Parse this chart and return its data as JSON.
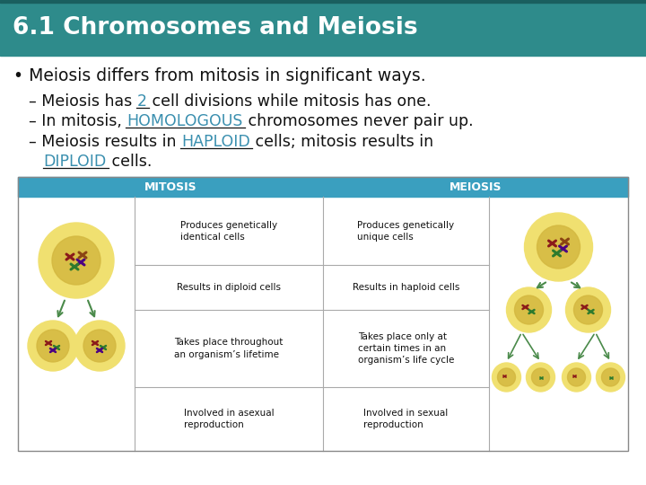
{
  "title": "6.1 Chromosomes and Meiosis",
  "title_bg_color": "#2e8b8b",
  "title_text_color": "#ffffff",
  "title_fontsize": 19,
  "slide_bg_color": "#ffffff",
  "bullet_text": "Meiosis differs from mitosis in significant ways.",
  "bullet_fontsize": 13.5,
  "sub_bullets": [
    {
      "prefix": "– Meiosis has ",
      "blank": "2",
      "suffix": " cell divisions while mitosis has one.",
      "blank_color": "#3a8faf"
    },
    {
      "prefix": "– In mitosis, ",
      "blank": "HOMOLOGOUS",
      "suffix": " chromosomes never pair up.",
      "blank_color": "#3a8faf"
    },
    {
      "prefix": "– Meiosis results in ",
      "blank": "HAPLOID",
      "suffix": " cells; mitosis results in",
      "blank_color": "#3a8faf"
    },
    {
      "prefix": "   ",
      "blank": "DIPLOID",
      "suffix": " cells.",
      "blank_color": "#3a8faf"
    }
  ],
  "sub_bullet_fontsize": 12.5,
  "table_header_bg": "#3a9fbf",
  "table_header_text": "#ffffff",
  "table_border_color": "#aaaaaa",
  "mitosis_header": "MITOSIS",
  "meiosis_header": "MEIOSIS",
  "mitosis_rows": [
    "Produces genetically\nidentical cells",
    "Results in diploid cells",
    "Takes place throughout\nan organism’s lifetime",
    "Involved in asexual\nreproduction"
  ],
  "meiosis_rows": [
    "Produces genetically\nunique cells",
    "Results in haploid cells",
    "Takes place only at\ncertain times in an\norganism’s life cycle",
    "Involved in sexual\nreproduction"
  ],
  "cell_outer_color": "#f0e070",
  "cell_inner_color": "#c8a820",
  "arrow_color": "#4a8a4a",
  "chrom_colors": [
    "#8B1a1a",
    "#4B0082",
    "#2d7a2d",
    "#8B4513"
  ]
}
